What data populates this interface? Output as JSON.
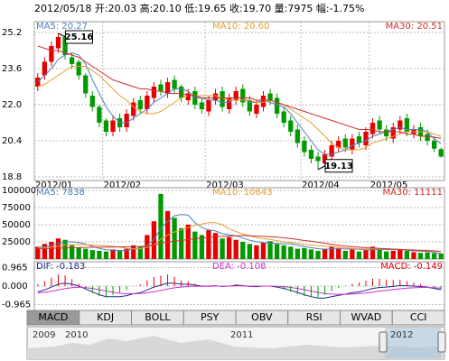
{
  "chart_data": [
    {
      "type": "candlestick",
      "title": "2012/05/18 开:20.03 高:20.10 低:19.65 收:19.70 量:7975 幅:-1.75%",
      "categories": [
        "2012/01",
        null,
        null,
        null,
        null,
        null,
        null,
        null,
        null,
        null,
        "2012/02",
        null,
        null,
        null,
        null,
        null,
        null,
        null,
        null,
        null,
        null,
        null,
        null,
        null,
        null,
        "2012/03",
        null,
        null,
        null,
        null,
        null,
        null,
        null,
        null,
        null,
        null,
        null,
        null,
        null,
        "2012/04",
        null,
        null,
        null,
        null,
        null,
        null,
        null,
        null,
        null,
        "2012/05",
        null,
        null,
        null,
        null,
        null,
        null,
        null,
        null,
        null,
        null
      ],
      "open": [
        22.8,
        23.3,
        23.9,
        24.5,
        25.0,
        24.1,
        23.9,
        23.3,
        22.4,
        21.9,
        21.3,
        20.8,
        21.4,
        21.0,
        21.5,
        22.2,
        21.8,
        22.3,
        22.9,
        22.5,
        23.1,
        22.8,
        22.2,
        22.6,
        22.1,
        21.7,
        22.2,
        22.6,
        21.8,
        22.2,
        22.7,
        22.2,
        21.6,
        21.9,
        22.5,
        22.3,
        21.7,
        21.3,
        20.9,
        20.4,
        20.0,
        19.7,
        19.4,
        19.7,
        20.1,
        20.5,
        20.0,
        20.6,
        20.2,
        20.7,
        21.3,
        20.9,
        20.5,
        20.9,
        21.4,
        20.7,
        21.0,
        20.7,
        20.4,
        20.03
      ],
      "high": [
        23.4,
        24.1,
        24.8,
        25.16,
        25.1,
        24.3,
        24.0,
        23.4,
        22.6,
        22.0,
        21.4,
        21.5,
        21.6,
        21.8,
        22.3,
        22.4,
        22.6,
        23.0,
        23.1,
        23.2,
        23.3,
        22.9,
        22.7,
        22.8,
        22.3,
        22.4,
        22.7,
        22.8,
        22.5,
        22.8,
        22.9,
        22.4,
        22.2,
        22.6,
        22.7,
        22.5,
        21.9,
        21.5,
        21.1,
        20.6,
        20.2,
        19.9,
        20.0,
        20.4,
        20.6,
        20.7,
        20.7,
        20.8,
        21.0,
        21.4,
        21.5,
        21.1,
        21.2,
        21.5,
        21.6,
        21.1,
        21.2,
        20.9,
        20.6,
        20.1
      ],
      "low": [
        22.6,
        23.1,
        23.7,
        24.3,
        24.0,
        23.6,
        23.1,
        22.3,
        21.7,
        21.0,
        20.6,
        20.6,
        20.8,
        20.8,
        21.3,
        21.6,
        21.6,
        22.1,
        22.4,
        22.3,
        22.5,
        22.1,
        22.0,
        21.8,
        21.6,
        21.5,
        22.0,
        21.7,
        21.6,
        22.0,
        21.9,
        21.5,
        21.4,
        21.7,
        22.0,
        21.4,
        21.0,
        20.6,
        20.1,
        19.7,
        19.4,
        19.13,
        19.3,
        19.5,
        19.9,
        19.9,
        19.8,
        20.1,
        20.0,
        20.5,
        20.7,
        20.4,
        20.3,
        20.7,
        20.6,
        20.5,
        20.4,
        20.2,
        19.9,
        19.65
      ],
      "close": [
        23.2,
        23.9,
        24.6,
        25.0,
        24.2,
        23.8,
        23.3,
        22.5,
        21.9,
        21.2,
        20.8,
        21.3,
        21.0,
        21.6,
        22.1,
        21.8,
        22.4,
        22.8,
        22.6,
        23.0,
        22.7,
        22.3,
        22.5,
        22.0,
        21.8,
        22.2,
        22.5,
        21.9,
        22.3,
        22.6,
        22.1,
        21.7,
        22.0,
        22.4,
        22.2,
        21.6,
        21.2,
        20.8,
        20.3,
        19.9,
        19.6,
        19.5,
        19.8,
        20.2,
        20.4,
        20.1,
        20.5,
        20.3,
        20.8,
        21.2,
        20.9,
        20.6,
        21.0,
        21.3,
        20.8,
        20.9,
        20.6,
        20.4,
        20.05,
        19.7
      ],
      "up_color": "#e60000",
      "down_color": "#009a00",
      "series": [
        {
          "name": "MA5: 20.27",
          "color": "#4f7fc0",
          "values": [
            23.0,
            23.3,
            23.6,
            24.0,
            24.2,
            24.3,
            24.2,
            23.8,
            23.1,
            22.5,
            21.9,
            21.5,
            21.2,
            21.2,
            21.4,
            21.6,
            21.8,
            22.1,
            22.3,
            22.5,
            22.7,
            22.7,
            22.6,
            22.3,
            22.3,
            22.2,
            22.2,
            22.1,
            22.1,
            22.3,
            22.3,
            22.1,
            22.1,
            22.2,
            22.1,
            22.0,
            21.9,
            21.6,
            21.2,
            20.8,
            20.4,
            20.0,
            19.8,
            19.8,
            19.9,
            20.0,
            20.2,
            20.3,
            20.4,
            20.6,
            20.7,
            20.8,
            20.9,
            21.0,
            20.9,
            20.9,
            20.9,
            20.8,
            20.5,
            20.27
          ]
        },
        {
          "name": "MA10: 20.60",
          "color": "#e8a030",
          "values": [
            22.8,
            22.9,
            23.1,
            23.3,
            23.5,
            23.7,
            23.7,
            23.7,
            23.5,
            23.3,
            23.0,
            22.7,
            22.4,
            22.2,
            21.9,
            21.7,
            21.6,
            21.6,
            21.7,
            21.9,
            22.1,
            22.3,
            22.4,
            22.4,
            22.4,
            22.4,
            22.4,
            22.3,
            22.2,
            22.2,
            22.2,
            22.2,
            22.1,
            22.1,
            22.2,
            22.1,
            22.0,
            21.8,
            21.6,
            21.4,
            21.2,
            20.9,
            20.6,
            20.3,
            20.1,
            20.0,
            20.0,
            20.0,
            20.1,
            20.3,
            20.4,
            20.5,
            20.6,
            20.7,
            20.8,
            20.8,
            20.8,
            20.8,
            20.7,
            20.6
          ]
        },
        {
          "name": "MA30: 20.51",
          "color": "#d03030",
          "values": [
            24.6,
            24.5,
            24.4,
            24.4,
            24.3,
            24.2,
            24.1,
            23.9,
            23.7,
            23.5,
            23.3,
            23.1,
            23.0,
            22.9,
            22.8,
            22.7,
            22.7,
            22.6,
            22.6,
            22.5,
            22.5,
            22.5,
            22.4,
            22.4,
            22.3,
            22.3,
            22.3,
            22.3,
            22.3,
            22.3,
            22.3,
            22.3,
            22.2,
            22.2,
            22.2,
            22.1,
            22.0,
            21.9,
            21.8,
            21.7,
            21.6,
            21.5,
            21.4,
            21.3,
            21.2,
            21.1,
            21.0,
            20.9,
            20.9,
            20.9,
            20.8,
            20.8,
            20.8,
            20.8,
            20.7,
            20.7,
            20.6,
            20.6,
            20.55,
            20.51
          ]
        }
      ],
      "annotations": [
        "25.16",
        "19.13"
      ],
      "ylim": [
        18.64,
        25.68
      ],
      "yticks": [
        18.8,
        20.4,
        {
          "value": 22,
          "label": "22.0"
        },
        23.6,
        25.2
      ],
      "grid": true
    },
    {
      "type": "volume",
      "values": [
        18000,
        22000,
        25000,
        30000,
        28000,
        20000,
        17000,
        15000,
        13000,
        12000,
        11000,
        14000,
        12000,
        15000,
        20000,
        18000,
        35000,
        55000,
        95000,
        70000,
        60000,
        45000,
        50000,
        40000,
        35000,
        42000,
        38000,
        30000,
        32000,
        28000,
        25000,
        22000,
        20000,
        24000,
        26000,
        22000,
        20000,
        18000,
        15000,
        16000,
        14000,
        12000,
        15000,
        18000,
        16000,
        12000,
        14000,
        11000,
        13000,
        18000,
        15000,
        11000,
        12000,
        14000,
        12000,
        10000,
        9000,
        9500,
        8500,
        7975
      ],
      "series": [
        {
          "name": "MA5: 7838",
          "color": "#4f7fc0",
          "values": [
            17000,
            18000,
            20000,
            23000,
            24600,
            25000,
            24000,
            22000,
            18600,
            15400,
            13600,
            13000,
            12400,
            12800,
            14400,
            15800,
            20000,
            28600,
            44600,
            54600,
            63000,
            65000,
            64000,
            53000,
            46000,
            42400,
            41000,
            37000,
            35400,
            34000,
            30600,
            27400,
            25400,
            23800,
            23400,
            22800,
            22400,
            22000,
            20200,
            18200,
            16600,
            15000,
            14400,
            15000,
            15000,
            14600,
            15000,
            14200,
            13200,
            13600,
            14200,
            13600,
            13800,
            14000,
            12800,
            11800,
            11400,
            10900,
            9800,
            7838
          ]
        },
        {
          "name": "MA10: 10643",
          "color": "#e8a030",
          "values": [
            16000,
            16500,
            17500,
            19000,
            20500,
            21000,
            21000,
            21000,
            20800,
            20000,
            19300,
            18500,
            17200,
            15700,
            14900,
            14700,
            16800,
            20800,
            29000,
            35000,
            39400,
            42500,
            46000,
            49000,
            51000,
            53000,
            53000,
            50000,
            44000,
            40000,
            36500,
            34200,
            31200,
            29600,
            28700,
            26700,
            25100,
            23900,
            22700,
            21500,
            20400,
            19400,
            18900,
            18300,
            17300,
            16300,
            15700,
            14900,
            14700,
            14900,
            14800,
            14700,
            14400,
            14000,
            13600,
            13400,
            12900,
            12800,
            12400,
            10643
          ]
        },
        {
          "name": "MA30: 11111",
          "color": "#d03030",
          "values": [
            15000,
            15200,
            15500,
            15800,
            16200,
            16500,
            16800,
            17000,
            17200,
            17300,
            17400,
            17500,
            17600,
            17800,
            18000,
            18300,
            19000,
            20500,
            23000,
            24500,
            26000,
            27000,
            28500,
            29500,
            30500,
            31500,
            32500,
            33000,
            33500,
            34000,
            34200,
            34000,
            33500,
            33000,
            32500,
            32000,
            31000,
            30000,
            28500,
            27000,
            26000,
            24500,
            23000,
            21500,
            20000,
            19000,
            18000,
            17200,
            16500,
            16000,
            15500,
            15000,
            14500,
            14000,
            13500,
            13000,
            12600,
            12200,
            11700,
            11111
          ]
        }
      ],
      "ylim": [
        0,
        104000
      ],
      "yticks": [
        25000,
        50000,
        75000,
        100000
      ],
      "grid": true
    },
    {
      "type": "macd",
      "up_color": "#e60000",
      "down_color": "#009a00",
      "series": [
        {
          "name": "DIF: -0.183",
          "color": "#1a2a8a",
          "values": [
            -0.3,
            -0.2,
            -0.05,
            0.1,
            0.15,
            0.1,
            0.0,
            -0.15,
            -0.3,
            -0.45,
            -0.55,
            -0.55,
            -0.55,
            -0.5,
            -0.4,
            -0.35,
            -0.2,
            -0.05,
            0.05,
            0.15,
            0.15,
            0.1,
            0.1,
            0.05,
            0.0,
            0.0,
            0.02,
            -0.02,
            0.0,
            0.05,
            0.03,
            -0.02,
            -0.03,
            0.0,
            0.0,
            -0.05,
            -0.12,
            -0.22,
            -0.33,
            -0.45,
            -0.55,
            -0.62,
            -0.62,
            -0.55,
            -0.48,
            -0.42,
            -0.35,
            -0.3,
            -0.22,
            -0.12,
            -0.07,
            -0.05,
            -0.02,
            0.03,
            0.02,
            0.0,
            -0.02,
            -0.06,
            -0.12,
            -0.183
          ]
        },
        {
          "name": "DEA: -0.108",
          "color": "#d030d0",
          "values": [
            -0.35,
            -0.33,
            -0.27,
            -0.2,
            -0.13,
            -0.08,
            -0.06,
            -0.08,
            -0.12,
            -0.19,
            -0.26,
            -0.32,
            -0.37,
            -0.4,
            -0.4,
            -0.39,
            -0.35,
            -0.29,
            -0.22,
            -0.15,
            -0.09,
            -0.05,
            -0.02,
            -0.01,
            -0.01,
            -0.01,
            0.0,
            0.0,
            0.0,
            0.01,
            0.01,
            0.0,
            0.0,
            0.0,
            0.0,
            -0.01,
            -0.03,
            -0.07,
            -0.12,
            -0.19,
            -0.26,
            -0.33,
            -0.39,
            -0.42,
            -0.43,
            -0.43,
            -0.41,
            -0.39,
            -0.36,
            -0.31,
            -0.26,
            -0.22,
            -0.18,
            -0.14,
            -0.11,
            -0.09,
            -0.07,
            -0.07,
            -0.08,
            -0.108
          ]
        },
        {
          "name": "MACD: -0.149",
          "color": "#e60000",
          "kind": "bar",
          "values": [
            0.1,
            0.26,
            0.44,
            0.6,
            0.56,
            0.36,
            0.12,
            -0.14,
            -0.36,
            -0.52,
            -0.58,
            -0.46,
            -0.36,
            -0.2,
            0.0,
            0.08,
            0.3,
            0.48,
            0.54,
            0.6,
            0.48,
            0.3,
            0.24,
            0.12,
            0.02,
            0.02,
            0.04,
            -0.04,
            0.0,
            0.08,
            0.04,
            -0.04,
            -0.06,
            0.0,
            0.0,
            -0.08,
            -0.18,
            -0.3,
            -0.42,
            -0.52,
            -0.58,
            -0.58,
            -0.46,
            -0.26,
            -0.1,
            0.02,
            0.12,
            0.18,
            0.28,
            0.38,
            0.38,
            0.34,
            0.32,
            0.34,
            0.26,
            0.18,
            0.1,
            0.02,
            -0.08,
            -0.149
          ]
        }
      ],
      "ylim": [
        -1.27,
        1.27
      ],
      "yticks": [
        0.965,
        {
          "value": 0,
          "label": "0.000"
        },
        -0.965
      ],
      "grid": true
    }
  ],
  "tabs": [
    "MACD",
    "KDJ",
    "BOLL",
    "PSY",
    "OBV",
    "RSI",
    "WVAD",
    "CCI"
  ],
  "navigator": {
    "labels": [
      "2009",
      "2010",
      "2011",
      "2012"
    ]
  }
}
